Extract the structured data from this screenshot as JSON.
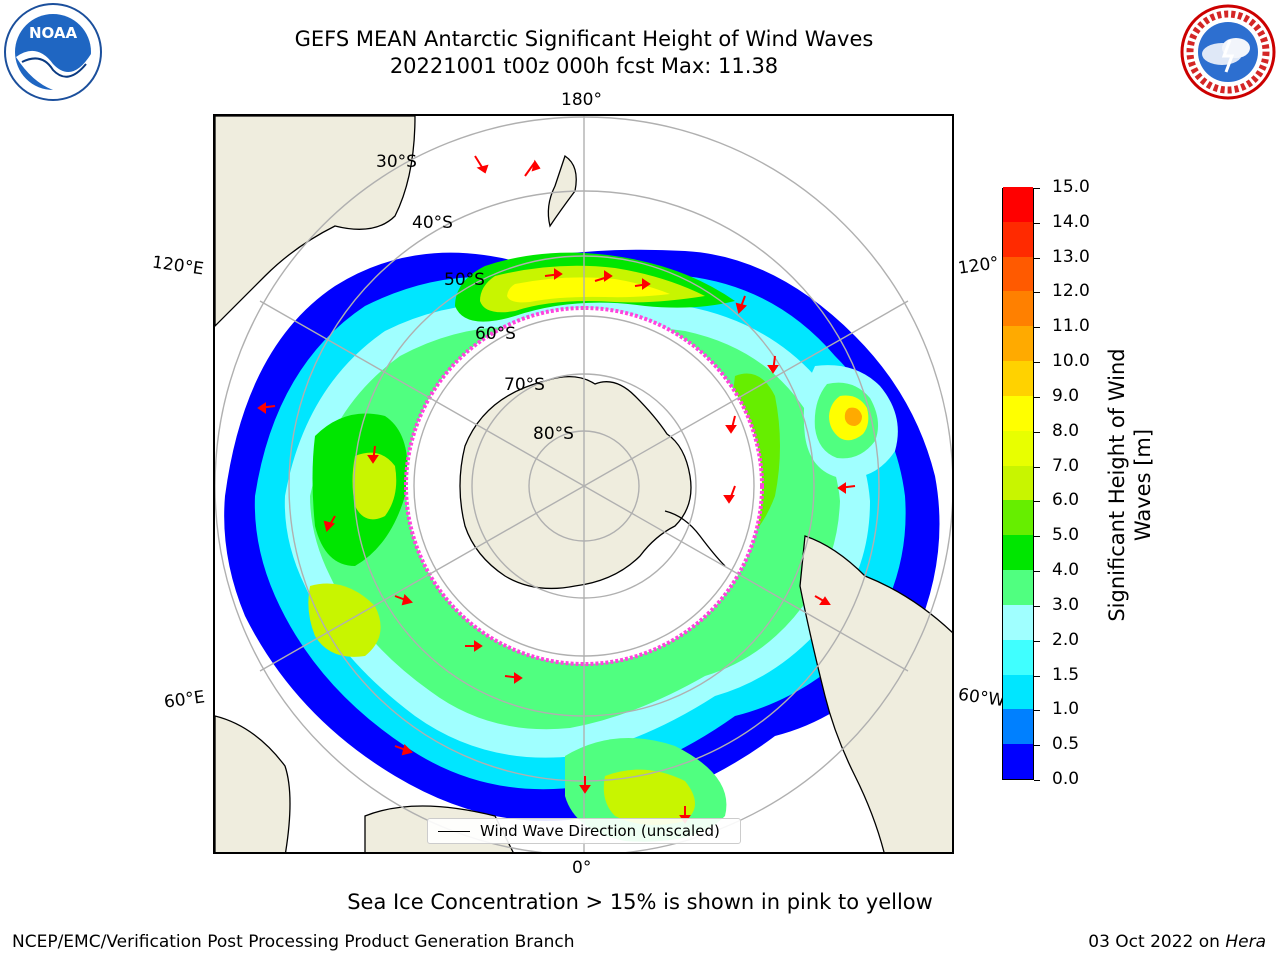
{
  "header": {
    "title_line1": "GEFS MEAN Antarctic Significant Height of Wind Waves",
    "title_line2": "20221001 t00z 000h fcst   Max: 11.38"
  },
  "logos": {
    "left_icon": "noaa-logo",
    "right_icon": "nws-logo"
  },
  "map": {
    "projection": "south-polar-stereographic",
    "longitude_labels": {
      "top": "180°",
      "bottom": "0°",
      "upper_left": "120°E",
      "upper_right": "120°",
      "lower_left": "60°E",
      "lower_right": "60°W"
    },
    "latitude_labels": [
      "30°S",
      "40°S",
      "50°S",
      "60°S",
      "70°S",
      "80°S"
    ],
    "colors": {
      "land": "#efedde",
      "ocean": "#ffffff",
      "grid": "#b0b0b0",
      "sea_ice": "#ff44dd",
      "arrow": "#ff0000"
    },
    "legend_label": "Wind Wave Direction (unscaled)"
  },
  "colorbar": {
    "label": "Significant Height of Wind Waves [m]",
    "ticks": [
      "0.0",
      "0.5",
      "1.0",
      "1.5",
      "2.0",
      "3.0",
      "4.0",
      "5.0",
      "6.0",
      "7.0",
      "8.0",
      "9.0",
      "10.0",
      "11.0",
      "12.0",
      "13.0",
      "14.0",
      "15.0"
    ],
    "colors": [
      "#0000ff",
      "#0080ff",
      "#00e6ff",
      "#40ffff",
      "#a0ffff",
      "#50ff80",
      "#00e600",
      "#66ee00",
      "#c8f500",
      "#e8ff00",
      "#ffff00",
      "#ffd200",
      "#ffaa00",
      "#ff8000",
      "#ff5a00",
      "#ff2a00",
      "#ff0000"
    ]
  },
  "notes": {
    "sea_ice": "Sea Ice Concentration > 15% is shown in pink to yellow"
  },
  "footer": {
    "left": "NCEP/EMC/Verification Post Processing Product Generation Branch",
    "right_prefix": "03 Oct 2022 on",
    "right_italic": "Hera"
  }
}
